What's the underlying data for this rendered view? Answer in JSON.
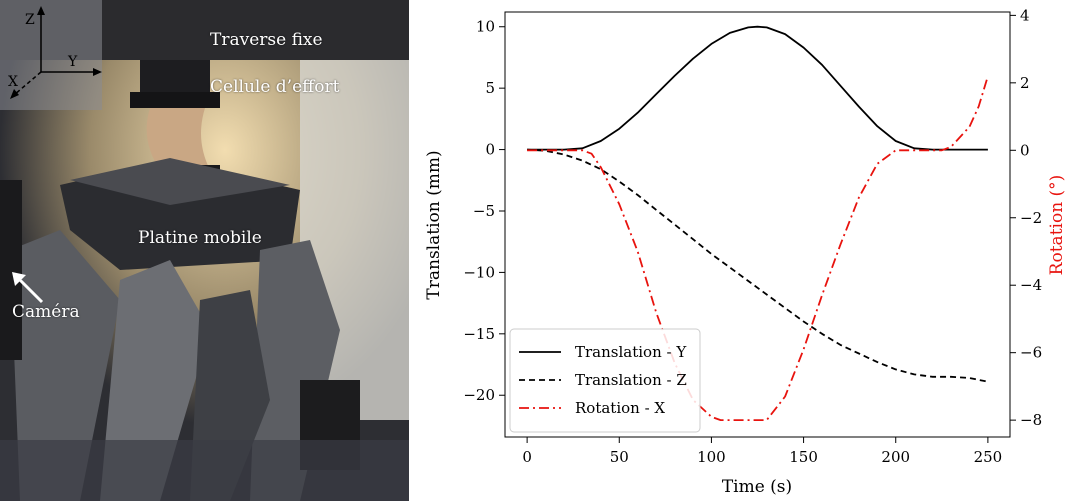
{
  "photo": {
    "labels": {
      "traverse": "Traverse fixe",
      "cellule": "Cellule d’effort",
      "platine": "Platine mobile",
      "camera": "Caméra"
    },
    "axes": {
      "z": "Z",
      "y": "Y",
      "x": "X"
    }
  },
  "chart_data": {
    "type": "line",
    "title": "",
    "xlabel": "Time (s)",
    "ylabel": "Translation (mm)",
    "y2label": "Rotation (°)",
    "xlim": [
      -12,
      262
    ],
    "ylim": [
      -23.4,
      11.2
    ],
    "y2lim": [
      -8.5,
      4.1
    ],
    "xticks": [
      0,
      50,
      100,
      150,
      200,
      250
    ],
    "yticks": [
      10,
      5,
      0,
      -5,
      -10,
      -15,
      -20
    ],
    "y2ticks": [
      4,
      2,
      0,
      -2,
      -4,
      -6,
      -8
    ],
    "legend": "lower-left",
    "grid": false,
    "series": [
      {
        "name": "Translation - Y",
        "axis": "left",
        "color": "#000000",
        "style": "solid",
        "x": [
          0,
          10,
          20,
          30,
          40,
          50,
          60,
          70,
          80,
          90,
          100,
          110,
          120,
          125,
          130,
          140,
          150,
          160,
          170,
          180,
          190,
          200,
          210,
          220,
          230,
          240,
          250
        ],
        "y": [
          0,
          0,
          0,
          0.1,
          0.7,
          1.7,
          3.0,
          4.5,
          6.0,
          7.4,
          8.6,
          9.5,
          9.95,
          10.0,
          9.95,
          9.4,
          8.3,
          6.9,
          5.2,
          3.5,
          1.9,
          0.7,
          0.1,
          0,
          0,
          0,
          0
        ]
      },
      {
        "name": "Translation - Z",
        "axis": "left",
        "color": "#000000",
        "style": "dashed",
        "x": [
          0,
          10,
          20,
          30,
          40,
          50,
          60,
          70,
          80,
          90,
          100,
          110,
          120,
          130,
          140,
          150,
          160,
          170,
          180,
          190,
          200,
          210,
          220,
          230,
          240,
          250
        ],
        "y": [
          0,
          -0.1,
          -0.4,
          -0.9,
          -1.6,
          -2.6,
          -3.7,
          -4.9,
          -6.1,
          -7.3,
          -8.5,
          -9.6,
          -10.7,
          -11.8,
          -12.9,
          -14.0,
          -15.0,
          -15.9,
          -16.6,
          -17.3,
          -17.9,
          -18.3,
          -18.5,
          -18.5,
          -18.6,
          -18.9
        ]
      },
      {
        "name": "Rotation - X",
        "axis": "right",
        "color": "#e8130e",
        "style": "dashdot",
        "x": [
          0,
          20,
          30,
          35,
          40,
          50,
          60,
          70,
          80,
          90,
          100,
          105,
          110,
          120,
          130,
          140,
          150,
          160,
          170,
          180,
          190,
          200,
          205,
          210,
          220,
          225,
          230,
          240,
          245,
          250
        ],
        "y": [
          0,
          0,
          0,
          -0.1,
          -0.5,
          -1.6,
          -3.0,
          -4.8,
          -6.3,
          -7.4,
          -7.9,
          -8.0,
          -8.0,
          -8.0,
          -8.0,
          -7.3,
          -5.9,
          -4.3,
          -2.8,
          -1.4,
          -0.4,
          0,
          0,
          0,
          0,
          0,
          0.1,
          0.7,
          1.3,
          2.2
        ]
      }
    ]
  }
}
